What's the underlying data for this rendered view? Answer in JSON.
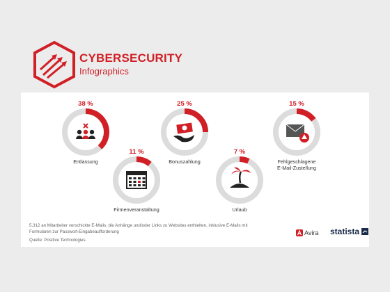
{
  "header": {
    "title": "CYBERSECURITY",
    "subtitle": "Infographics"
  },
  "chart_data": {
    "type": "pie",
    "unit": "%",
    "categories": [
      "Entlassung",
      "Firmenveranstaltung",
      "Bonuszahlung",
      "Urlaub",
      "Fehlgeschlagene E-Mail-Zustellung"
    ],
    "values": [
      38,
      11,
      25,
      7,
      15
    ],
    "value_labels": [
      "38 %",
      "11 %",
      "25 %",
      "7 %",
      "15 %"
    ],
    "label_lines": [
      [
        "Entlassung"
      ],
      [
        "Firmenveranstaltung"
      ],
      [
        "Bonuszahlung"
      ],
      [
        "Urlaub"
      ],
      [
        "Fehlgeschlagene",
        "E-Mail-Zustellung"
      ]
    ],
    "icons": [
      "fired-people-icon",
      "calendar-icon",
      "money-hand-icon",
      "island-icon",
      "envelope-warning-icon"
    ],
    "colors": {
      "filled": "#d11f26",
      "ring": "#dcdcdc"
    }
  },
  "footer": {
    "note": "5.312 an Mitarbeiter verschickte E-Mails, die Anhänge und/oder Links zu Websites enthielten, inklusive E-Mails mit Formularen zur Passwort-Eingabeaufforderung",
    "source": "Quelle: Positive Technologies",
    "brand_avira": "Avira",
    "brand_statista": "statista"
  }
}
